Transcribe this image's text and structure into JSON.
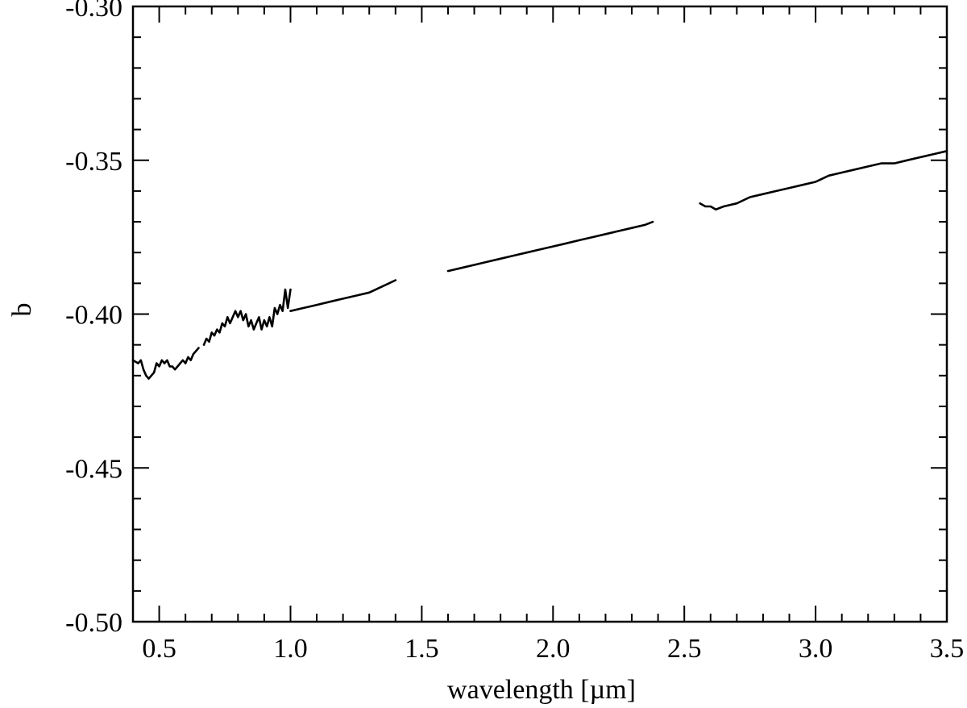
{
  "chart_data": {
    "type": "line",
    "title": "",
    "xlabel": "wavelength [µm]",
    "ylabel": "b",
    "xlim": [
      0.4,
      3.5
    ],
    "ylim": [
      -0.5,
      -0.3
    ],
    "grid": false,
    "legend": "none",
    "x_major_ticks": [
      0.5,
      1.0,
      1.5,
      2.0,
      2.5,
      3.0,
      3.5
    ],
    "x_tick_labels": [
      "0.5",
      "1.0",
      "1.5",
      "2.0",
      "2.5",
      "3.0",
      "3.5"
    ],
    "x_minor_step": 0.1,
    "y_major_ticks": [
      -0.3,
      -0.35,
      -0.4,
      -0.45,
      -0.5
    ],
    "y_tick_labels": [
      "-0.30",
      "-0.35",
      "-0.40",
      "-0.45",
      "-0.50"
    ],
    "y_minor_step": 0.01,
    "line_color": "#000000",
    "segments": [
      {
        "x": [
          0.4,
          0.42,
          0.43,
          0.44,
          0.45,
          0.46,
          0.47,
          0.48,
          0.49,
          0.5,
          0.51,
          0.52,
          0.53,
          0.54,
          0.55,
          0.56,
          0.57,
          0.58,
          0.59,
          0.6,
          0.61,
          0.62,
          0.63,
          0.64,
          0.65
        ],
        "y": [
          -0.415,
          -0.416,
          -0.415,
          -0.418,
          -0.42,
          -0.421,
          -0.42,
          -0.419,
          -0.416,
          -0.417,
          -0.415,
          -0.416,
          -0.415,
          -0.417,
          -0.417,
          -0.418,
          -0.417,
          -0.416,
          -0.415,
          -0.416,
          -0.414,
          -0.415,
          -0.413,
          -0.412,
          -0.411
        ]
      },
      {
        "x": [
          0.67,
          0.68,
          0.69,
          0.7,
          0.71,
          0.72,
          0.73,
          0.74,
          0.75,
          0.76,
          0.77,
          0.78,
          0.79,
          0.8,
          0.81,
          0.82,
          0.83,
          0.84,
          0.85,
          0.86,
          0.87,
          0.88,
          0.89,
          0.9,
          0.91,
          0.92,
          0.93,
          0.94,
          0.95,
          0.96,
          0.97,
          0.98,
          0.99,
          1.0
        ],
        "y": [
          -0.41,
          -0.408,
          -0.409,
          -0.406,
          -0.407,
          -0.405,
          -0.406,
          -0.403,
          -0.404,
          -0.401,
          -0.403,
          -0.401,
          -0.399,
          -0.401,
          -0.399,
          -0.402,
          -0.4,
          -0.404,
          -0.402,
          -0.405,
          -0.403,
          -0.401,
          -0.405,
          -0.402,
          -0.404,
          -0.401,
          -0.404,
          -0.398,
          -0.4,
          -0.397,
          -0.399,
          -0.392,
          -0.398,
          -0.392
        ]
      },
      {
        "x": [
          1.0,
          1.05,
          1.1,
          1.15,
          1.2,
          1.25,
          1.3,
          1.35,
          1.4
        ],
        "y": [
          -0.399,
          -0.398,
          -0.397,
          -0.396,
          -0.395,
          -0.394,
          -0.393,
          -0.391,
          -0.389
        ]
      },
      {
        "x": [
          1.6,
          1.65,
          1.7,
          1.75,
          1.8,
          1.85,
          1.9,
          1.95,
          2.0,
          2.05,
          2.1,
          2.15,
          2.2,
          2.25,
          2.3,
          2.35,
          2.38
        ],
        "y": [
          -0.386,
          -0.385,
          -0.384,
          -0.383,
          -0.382,
          -0.381,
          -0.38,
          -0.379,
          -0.378,
          -0.377,
          -0.376,
          -0.375,
          -0.374,
          -0.373,
          -0.372,
          -0.371,
          -0.37
        ]
      },
      {
        "x": [
          2.56,
          2.58,
          2.6,
          2.62,
          2.65,
          2.7,
          2.75,
          2.8,
          2.85,
          2.9,
          2.95,
          3.0,
          3.05,
          3.1,
          3.15,
          3.2,
          3.25,
          3.3,
          3.35,
          3.4,
          3.45,
          3.5
        ],
        "y": [
          -0.364,
          -0.365,
          -0.365,
          -0.366,
          -0.365,
          -0.364,
          -0.362,
          -0.361,
          -0.36,
          -0.359,
          -0.358,
          -0.357,
          -0.355,
          -0.354,
          -0.353,
          -0.352,
          -0.351,
          -0.351,
          -0.35,
          -0.349,
          -0.348,
          -0.347
        ]
      }
    ]
  }
}
